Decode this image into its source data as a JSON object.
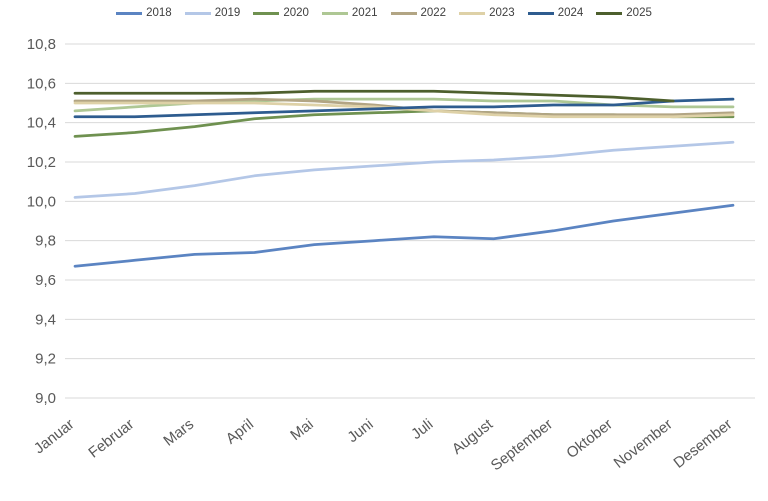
{
  "chart_data": {
    "type": "line",
    "categories": [
      "Januar",
      "Februar",
      "Mars",
      "April",
      "Mai",
      "Juni",
      "Juli",
      "August",
      "September",
      "Oktober",
      "November",
      "Desember"
    ],
    "series": [
      {
        "name": "2018",
        "color": "#5b84c2",
        "values": [
          9.67,
          9.7,
          9.73,
          9.74,
          9.78,
          9.8,
          9.82,
          9.81,
          9.85,
          9.9,
          9.94,
          9.98
        ]
      },
      {
        "name": "2019",
        "color": "#b4c7e7",
        "values": [
          10.02,
          10.04,
          10.08,
          10.13,
          10.16,
          10.18,
          10.2,
          10.21,
          10.23,
          10.26,
          10.28,
          10.3
        ]
      },
      {
        "name": "2020",
        "color": "#6f9150",
        "values": [
          10.33,
          10.35,
          10.38,
          10.42,
          10.44,
          10.45,
          10.46,
          10.45,
          10.44,
          10.44,
          10.43,
          10.43
        ]
      },
      {
        "name": "2021",
        "color": "#aec794",
        "values": [
          10.46,
          10.48,
          10.5,
          10.51,
          10.52,
          10.52,
          10.52,
          10.51,
          10.51,
          10.49,
          10.48,
          10.48
        ]
      },
      {
        "name": "2022",
        "color": "#b2a584",
        "values": [
          10.51,
          10.51,
          10.51,
          10.52,
          10.51,
          10.49,
          10.46,
          10.45,
          10.44,
          10.44,
          10.44,
          10.45
        ]
      },
      {
        "name": "2023",
        "color": "#ded1a7",
        "values": [
          10.5,
          10.5,
          10.5,
          10.5,
          10.49,
          10.48,
          10.46,
          10.44,
          10.43,
          10.43,
          10.43,
          10.44
        ]
      },
      {
        "name": "2024",
        "color": "#2e5c8f",
        "values": [
          10.43,
          10.43,
          10.44,
          10.45,
          10.46,
          10.47,
          10.48,
          10.48,
          10.49,
          10.49,
          10.51,
          10.52
        ]
      },
      {
        "name": "2025",
        "color": "#4d5f2d",
        "values": [
          10.55,
          10.55,
          10.55,
          10.55,
          10.56,
          10.56,
          10.56,
          10.55,
          10.54,
          10.53,
          10.51,
          null
        ]
      }
    ],
    "title": "",
    "xlabel": "",
    "ylabel": "",
    "ylim": [
      9.0,
      10.8
    ],
    "y_tick_step": 0.2,
    "y_tick_labels": [
      "9,0",
      "9,2",
      "9,4",
      "9,6",
      "9,8",
      "10,0",
      "10,2",
      "10,4",
      "10,6",
      "10,8"
    ],
    "decimal_separator": ",",
    "grid": "horizontal-only",
    "legend_position": "top-center",
    "x_label_rotation_deg": -38,
    "colors": {
      "gridline": "#dadada",
      "tick_text": "#595959",
      "legend_text": "#404040",
      "background": "#ffffff"
    }
  }
}
